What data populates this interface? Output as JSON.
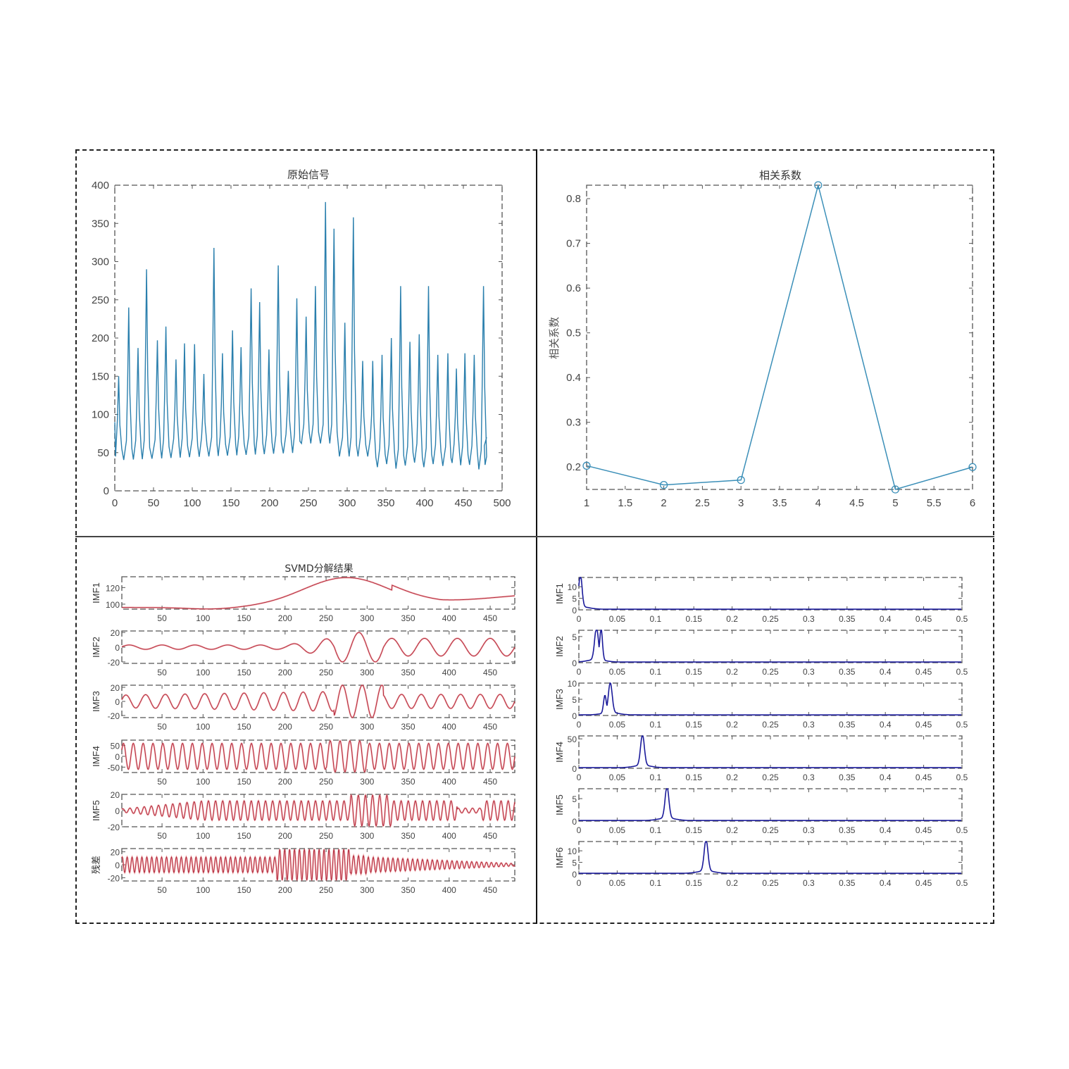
{
  "colors": {
    "signal_line": "#2a7fad",
    "corr_line": "#3b8fb8",
    "imf_line": "#b0283c",
    "imf_shadow": "#f08080",
    "spectrum_line": "#1a1a9a",
    "axis": "#444444",
    "frame": "#222222"
  },
  "chart_data": [
    {
      "id": "original-signal",
      "type": "line",
      "title": "原始信号",
      "xlabel": "",
      "ylabel": "",
      "xlim": [
        0,
        500
      ],
      "ylim": [
        0,
        400
      ],
      "xticks": [
        0,
        50,
        100,
        150,
        200,
        250,
        300,
        350,
        400,
        450,
        500
      ],
      "yticks": [
        0,
        50,
        100,
        150,
        200,
        250,
        300,
        350,
        400
      ],
      "grid": false,
      "n_points": 480,
      "peaks": [
        {
          "x": 5,
          "y": 150
        },
        {
          "x": 18,
          "y": 240
        },
        {
          "x": 30,
          "y": 187
        },
        {
          "x": 41,
          "y": 290
        },
        {
          "x": 55,
          "y": 197
        },
        {
          "x": 66,
          "y": 215
        },
        {
          "x": 79,
          "y": 172
        },
        {
          "x": 90,
          "y": 193
        },
        {
          "x": 103,
          "y": 192
        },
        {
          "x": 115,
          "y": 153
        },
        {
          "x": 128,
          "y": 318
        },
        {
          "x": 139,
          "y": 180
        },
        {
          "x": 152,
          "y": 210
        },
        {
          "x": 163,
          "y": 188
        },
        {
          "x": 176,
          "y": 265
        },
        {
          "x": 187,
          "y": 247
        },
        {
          "x": 199,
          "y": 185
        },
        {
          "x": 211,
          "y": 295
        },
        {
          "x": 224,
          "y": 157
        },
        {
          "x": 235,
          "y": 252
        },
        {
          "x": 247,
          "y": 228
        },
        {
          "x": 259,
          "y": 268
        },
        {
          "x": 272,
          "y": 378
        },
        {
          "x": 283,
          "y": 343
        },
        {
          "x": 297,
          "y": 220
        },
        {
          "x": 308,
          "y": 358
        },
        {
          "x": 320,
          "y": 170
        },
        {
          "x": 333,
          "y": 170
        },
        {
          "x": 345,
          "y": 178
        },
        {
          "x": 357,
          "y": 200
        },
        {
          "x": 369,
          "y": 268
        },
        {
          "x": 381,
          "y": 195
        },
        {
          "x": 393,
          "y": 205
        },
        {
          "x": 405,
          "y": 268
        },
        {
          "x": 417,
          "y": 178
        },
        {
          "x": 430,
          "y": 180
        },
        {
          "x": 441,
          "y": 160
        },
        {
          "x": 452,
          "y": 180
        },
        {
          "x": 464,
          "y": 178
        },
        {
          "x": 476,
          "y": 268
        }
      ],
      "troughs_approx": "baseline ~40-50 for x<250, ~60-70 near x=250-280, ~20-35 for x>330"
    },
    {
      "id": "correlation",
      "type": "line",
      "title": "相关系数",
      "xlabel": "",
      "ylabel": "相关系数",
      "x": [
        1,
        2,
        3,
        4,
        5,
        6
      ],
      "values": [
        0.203,
        0.16,
        0.171,
        0.83,
        0.15,
        0.2
      ],
      "marker": "circle",
      "xlim": [
        1,
        6
      ],
      "ylim": [
        0.15,
        0.83
      ],
      "xticks": [
        1,
        1.5,
        2,
        2.5,
        3,
        3.5,
        4,
        4.5,
        5,
        5.5,
        6
      ],
      "yticks": [
        0.2,
        0.3,
        0.4,
        0.5,
        0.6,
        0.7,
        0.8
      ],
      "grid": false
    },
    {
      "id": "svmd-decomposition",
      "type": "line",
      "title": "SVMD分解结果",
      "xlim": [
        1,
        480
      ],
      "xticks": [
        50,
        100,
        150,
        200,
        250,
        300,
        350,
        400,
        450
      ],
      "subplots": [
        {
          "ylabel": "IMF1",
          "yticks": [
            100,
            120
          ],
          "ylim": [
            94,
            133
          ],
          "description": "slow trend ~96 rising to peak ~132 at x=275, dips to ~102 at x=390, ends ~110"
        },
        {
          "ylabel": "IMF2",
          "yticks": [
            -20,
            0,
            20
          ],
          "ylim": [
            -22,
            22
          ],
          "period": 40,
          "amplitude_env": "small (~3) to x=200, grows to ~20 near x=290-310, ~12 after"
        },
        {
          "ylabel": "IMF3",
          "yticks": [
            -20,
            0,
            20
          ],
          "ylim": [
            -23,
            23
          ],
          "period": 24,
          "amplitude_env": "~9 early, peaks ~23 near x=290-310, ~10 after"
        },
        {
          "ylabel": "IMF4",
          "yticks": [
            -50,
            0,
            50
          ],
          "ylim": [
            -75,
            75
          ],
          "period": 12,
          "amplitude_env": "~60 constant, ~75 near x=260-300"
        },
        {
          "ylabel": "IMF5",
          "yticks": [
            -20,
            0,
            20
          ],
          "ylim": [
            -20,
            20
          ],
          "period": 8.7,
          "amplitude_env": "~2 at start growing to ~12, peaks ~20 near x=290-320, dips near x=420"
        },
        {
          "ylabel": "残差",
          "yticks": [
            -20,
            0,
            20
          ],
          "ylim": [
            -25,
            25
          ],
          "period": 6,
          "amplitude_env": "~12 early, peaks ~25 near x=200-270, decays to ~2 at end"
        }
      ]
    },
    {
      "id": "spectrum",
      "type": "line",
      "title": "",
      "xlim": [
        0,
        0.5
      ],
      "xticks": [
        0,
        0.05,
        0.1,
        0.15,
        0.2,
        0.25,
        0.3,
        0.35,
        0.4,
        0.45,
        0.5
      ],
      "subplots": [
        {
          "ylabel": "IMF1",
          "yticks": [
            0,
            5,
            10
          ],
          "ylim": [
            0,
            14
          ],
          "peak_freq": 0.002,
          "peak_value": 14
        },
        {
          "ylabel": "IMF2",
          "yticks": [
            0,
            5
          ],
          "ylim": [
            0,
            6.2
          ],
          "peak_freq": 0.023,
          "peak_value": 6.1,
          "secondary_peak": {
            "freq": 0.029,
            "value": 6.0
          }
        },
        {
          "ylabel": "IMF3",
          "yticks": [
            0,
            5,
            10
          ],
          "ylim": [
            0,
            10
          ],
          "peak_freq": 0.041,
          "peak_value": 9.2,
          "secondary_peak": {
            "freq": 0.034,
            "value": 5.5
          }
        },
        {
          "ylabel": "IMF4",
          "yticks": [
            0,
            50
          ],
          "ylim": [
            0,
            55
          ],
          "peak_freq": 0.083,
          "peak_value": 52
        },
        {
          "ylabel": "IMF5",
          "yticks": [
            0,
            5
          ],
          "ylim": [
            0,
            7.2
          ],
          "peak_freq": 0.115,
          "peak_value": 7.0
        },
        {
          "ylabel": "IMF6",
          "yticks": [
            0,
            5,
            10
          ],
          "ylim": [
            0,
            14
          ],
          "peak_freq": 0.166,
          "peak_value": 13.5
        }
      ]
    }
  ]
}
